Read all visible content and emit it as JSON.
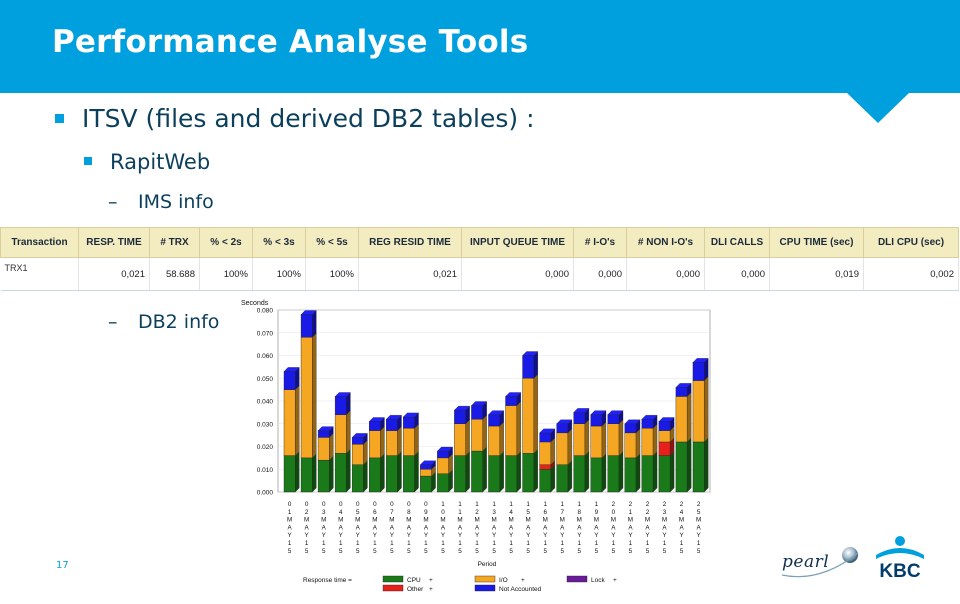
{
  "slide": {
    "title": "Performance Analyse Tools",
    "bullet1": "ITSV (files and derived DB2 tables) :",
    "bullet2": "RapitWeb",
    "sub1": "IMS info",
    "sub2": "DB2 info",
    "dash": "–",
    "page_number": "17"
  },
  "colors": {
    "header": "#00a0de",
    "text": "#0b3f5b",
    "table_header_bg": "#f3ecc1"
  },
  "ims_table": {
    "headers": [
      "Transaction",
      "RESP. TIME",
      "# TRX",
      "% < 2s",
      "% < 3s",
      "% < 5s",
      "REG RESID TIME",
      "INPUT QUEUE TIME",
      "# I-O's",
      "# NON I-O's",
      "DLI CALLS",
      "CPU TIME (sec)",
      "DLI CPU (sec)"
    ],
    "row": [
      "TRX1",
      "0,021",
      "58.688",
      "100%",
      "100%",
      "100%",
      "0,021",
      "0,000",
      "0,000",
      "0,000",
      "0,000",
      "0,019",
      "0,002"
    ]
  },
  "chart_data": {
    "type": "bar",
    "stacked": true,
    "yaxis_title": "Seconds",
    "xlabel": "Period",
    "ylim": [
      0,
      0.08
    ],
    "yticks": [
      "0.000",
      "0.010",
      "0.020",
      "0.030",
      "0.040",
      "0.050",
      "0.060",
      "0.070",
      "0.080"
    ],
    "categories": [
      "01MAY15",
      "02MAY15",
      "03MAY15",
      "04MAY15",
      "05MAY15",
      "06MAY15",
      "07MAY15",
      "08MAY15",
      "09MAY15",
      "10MAY15",
      "11MAY15",
      "12MAY15",
      "13MAY15",
      "14MAY15",
      "15MAY15",
      "16MAY15",
      "17MAY15",
      "18MAY15",
      "19MAY15",
      "20MAY15",
      "21MAY15",
      "22MAY15",
      "23MAY15",
      "24MAY15",
      "25MAY15"
    ],
    "series": [
      {
        "name": "CPU",
        "color": "#1a7a1a",
        "values": [
          0.016,
          0.015,
          0.014,
          0.017,
          0.012,
          0.015,
          0.016,
          0.016,
          0.007,
          0.008,
          0.016,
          0.018,
          0.016,
          0.016,
          0.017,
          0.01,
          0.012,
          0.016,
          0.015,
          0.016,
          0.015,
          0.016,
          0.016,
          0.022,
          0.022
        ]
      },
      {
        "name": "Other",
        "color": "#e8201c",
        "values": [
          0,
          0,
          0,
          0,
          0,
          0,
          0,
          0,
          0,
          0,
          0,
          0,
          0,
          0,
          0,
          0.002,
          0,
          0,
          0,
          0,
          0,
          0,
          0.006,
          0,
          0
        ]
      },
      {
        "name": "I/O",
        "color": "#f5a623",
        "values": [
          0.029,
          0.053,
          0.01,
          0.017,
          0.009,
          0.012,
          0.011,
          0.012,
          0.003,
          0.007,
          0.014,
          0.014,
          0.013,
          0.022,
          0.033,
          0.01,
          0.014,
          0.014,
          0.014,
          0.014,
          0.011,
          0.012,
          0.005,
          0.02,
          0.027
        ]
      },
      {
        "name": "Lock",
        "color": "#6a1b9a",
        "values": [
          0,
          0,
          0,
          0,
          0,
          0,
          0,
          0,
          0,
          0,
          0,
          0,
          0,
          0,
          0,
          0,
          0,
          0,
          0,
          0,
          0,
          0,
          0,
          0,
          0
        ]
      },
      {
        "name": "Not Accounted",
        "color": "#1a1ae6",
        "values": [
          0.008,
          0.01,
          0.003,
          0.008,
          0.003,
          0.004,
          0.005,
          0.005,
          0.002,
          0.003,
          0.006,
          0.006,
          0.005,
          0.004,
          0.01,
          0.004,
          0.004,
          0.005,
          0.005,
          0.004,
          0.004,
          0.004,
          0.004,
          0.004,
          0.008
        ]
      }
    ],
    "legend": {
      "prefix": "Response time =",
      "items": [
        {
          "label": "CPU",
          "op": "+",
          "color": "#1a7a1a"
        },
        {
          "label": "I/O",
          "op": "+",
          "color": "#f5a623"
        },
        {
          "label": "Lock",
          "op": "+",
          "color": "#6a1b9a"
        },
        {
          "label": "Other",
          "op": "+",
          "color": "#e8201c"
        },
        {
          "label": "Not Accounted",
          "op": "",
          "color": "#1a1ae6"
        }
      ]
    }
  },
  "logos": {
    "pearl": "pearl",
    "kbc": "KBC"
  }
}
